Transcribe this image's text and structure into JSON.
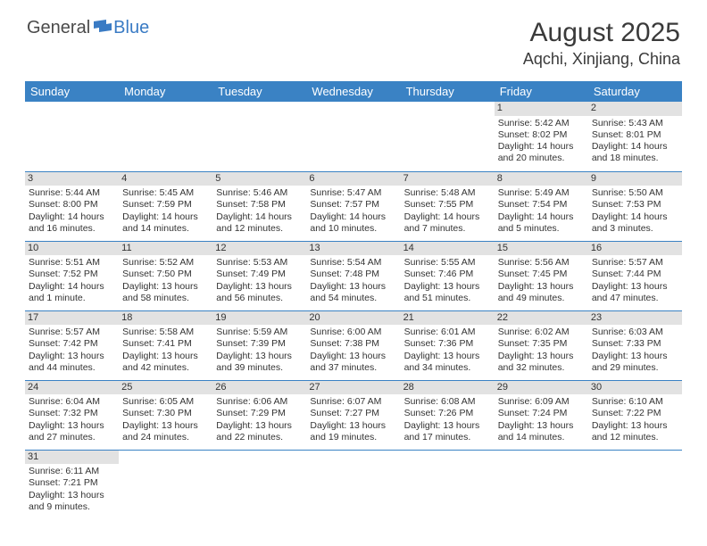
{
  "logo": {
    "general": "General",
    "blue": "Blue"
  },
  "title": "August 2025",
  "location": "Aqchi, Xinjiang, China",
  "colors": {
    "header_bg": "#3a82c4",
    "header_text": "#ffffff",
    "daynum_bg": "#e2e2e2",
    "row_border": "#3a82c4",
    "logo_blue": "#3a7bc4",
    "text": "#3a3a3a"
  },
  "day_headers": [
    "Sunday",
    "Monday",
    "Tuesday",
    "Wednesday",
    "Thursday",
    "Friday",
    "Saturday"
  ],
  "weeks": [
    [
      null,
      null,
      null,
      null,
      null,
      {
        "n": "1",
        "sr": "Sunrise: 5:42 AM",
        "ss": "Sunset: 8:02 PM",
        "d1": "Daylight: 14 hours",
        "d2": "and 20 minutes."
      },
      {
        "n": "2",
        "sr": "Sunrise: 5:43 AM",
        "ss": "Sunset: 8:01 PM",
        "d1": "Daylight: 14 hours",
        "d2": "and 18 minutes."
      }
    ],
    [
      {
        "n": "3",
        "sr": "Sunrise: 5:44 AM",
        "ss": "Sunset: 8:00 PM",
        "d1": "Daylight: 14 hours",
        "d2": "and 16 minutes."
      },
      {
        "n": "4",
        "sr": "Sunrise: 5:45 AM",
        "ss": "Sunset: 7:59 PM",
        "d1": "Daylight: 14 hours",
        "d2": "and 14 minutes."
      },
      {
        "n": "5",
        "sr": "Sunrise: 5:46 AM",
        "ss": "Sunset: 7:58 PM",
        "d1": "Daylight: 14 hours",
        "d2": "and 12 minutes."
      },
      {
        "n": "6",
        "sr": "Sunrise: 5:47 AM",
        "ss": "Sunset: 7:57 PM",
        "d1": "Daylight: 14 hours",
        "d2": "and 10 minutes."
      },
      {
        "n": "7",
        "sr": "Sunrise: 5:48 AM",
        "ss": "Sunset: 7:55 PM",
        "d1": "Daylight: 14 hours",
        "d2": "and 7 minutes."
      },
      {
        "n": "8",
        "sr": "Sunrise: 5:49 AM",
        "ss": "Sunset: 7:54 PM",
        "d1": "Daylight: 14 hours",
        "d2": "and 5 minutes."
      },
      {
        "n": "9",
        "sr": "Sunrise: 5:50 AM",
        "ss": "Sunset: 7:53 PM",
        "d1": "Daylight: 14 hours",
        "d2": "and 3 minutes."
      }
    ],
    [
      {
        "n": "10",
        "sr": "Sunrise: 5:51 AM",
        "ss": "Sunset: 7:52 PM",
        "d1": "Daylight: 14 hours",
        "d2": "and 1 minute."
      },
      {
        "n": "11",
        "sr": "Sunrise: 5:52 AM",
        "ss": "Sunset: 7:50 PM",
        "d1": "Daylight: 13 hours",
        "d2": "and 58 minutes."
      },
      {
        "n": "12",
        "sr": "Sunrise: 5:53 AM",
        "ss": "Sunset: 7:49 PM",
        "d1": "Daylight: 13 hours",
        "d2": "and 56 minutes."
      },
      {
        "n": "13",
        "sr": "Sunrise: 5:54 AM",
        "ss": "Sunset: 7:48 PM",
        "d1": "Daylight: 13 hours",
        "d2": "and 54 minutes."
      },
      {
        "n": "14",
        "sr": "Sunrise: 5:55 AM",
        "ss": "Sunset: 7:46 PM",
        "d1": "Daylight: 13 hours",
        "d2": "and 51 minutes."
      },
      {
        "n": "15",
        "sr": "Sunrise: 5:56 AM",
        "ss": "Sunset: 7:45 PM",
        "d1": "Daylight: 13 hours",
        "d2": "and 49 minutes."
      },
      {
        "n": "16",
        "sr": "Sunrise: 5:57 AM",
        "ss": "Sunset: 7:44 PM",
        "d1": "Daylight: 13 hours",
        "d2": "and 47 minutes."
      }
    ],
    [
      {
        "n": "17",
        "sr": "Sunrise: 5:57 AM",
        "ss": "Sunset: 7:42 PM",
        "d1": "Daylight: 13 hours",
        "d2": "and 44 minutes."
      },
      {
        "n": "18",
        "sr": "Sunrise: 5:58 AM",
        "ss": "Sunset: 7:41 PM",
        "d1": "Daylight: 13 hours",
        "d2": "and 42 minutes."
      },
      {
        "n": "19",
        "sr": "Sunrise: 5:59 AM",
        "ss": "Sunset: 7:39 PM",
        "d1": "Daylight: 13 hours",
        "d2": "and 39 minutes."
      },
      {
        "n": "20",
        "sr": "Sunrise: 6:00 AM",
        "ss": "Sunset: 7:38 PM",
        "d1": "Daylight: 13 hours",
        "d2": "and 37 minutes."
      },
      {
        "n": "21",
        "sr": "Sunrise: 6:01 AM",
        "ss": "Sunset: 7:36 PM",
        "d1": "Daylight: 13 hours",
        "d2": "and 34 minutes."
      },
      {
        "n": "22",
        "sr": "Sunrise: 6:02 AM",
        "ss": "Sunset: 7:35 PM",
        "d1": "Daylight: 13 hours",
        "d2": "and 32 minutes."
      },
      {
        "n": "23",
        "sr": "Sunrise: 6:03 AM",
        "ss": "Sunset: 7:33 PM",
        "d1": "Daylight: 13 hours",
        "d2": "and 29 minutes."
      }
    ],
    [
      {
        "n": "24",
        "sr": "Sunrise: 6:04 AM",
        "ss": "Sunset: 7:32 PM",
        "d1": "Daylight: 13 hours",
        "d2": "and 27 minutes."
      },
      {
        "n": "25",
        "sr": "Sunrise: 6:05 AM",
        "ss": "Sunset: 7:30 PM",
        "d1": "Daylight: 13 hours",
        "d2": "and 24 minutes."
      },
      {
        "n": "26",
        "sr": "Sunrise: 6:06 AM",
        "ss": "Sunset: 7:29 PM",
        "d1": "Daylight: 13 hours",
        "d2": "and 22 minutes."
      },
      {
        "n": "27",
        "sr": "Sunrise: 6:07 AM",
        "ss": "Sunset: 7:27 PM",
        "d1": "Daylight: 13 hours",
        "d2": "and 19 minutes."
      },
      {
        "n": "28",
        "sr": "Sunrise: 6:08 AM",
        "ss": "Sunset: 7:26 PM",
        "d1": "Daylight: 13 hours",
        "d2": "and 17 minutes."
      },
      {
        "n": "29",
        "sr": "Sunrise: 6:09 AM",
        "ss": "Sunset: 7:24 PM",
        "d1": "Daylight: 13 hours",
        "d2": "and 14 minutes."
      },
      {
        "n": "30",
        "sr": "Sunrise: 6:10 AM",
        "ss": "Sunset: 7:22 PM",
        "d1": "Daylight: 13 hours",
        "d2": "and 12 minutes."
      }
    ],
    [
      {
        "n": "31",
        "sr": "Sunrise: 6:11 AM",
        "ss": "Sunset: 7:21 PM",
        "d1": "Daylight: 13 hours",
        "d2": "and 9 minutes."
      },
      null,
      null,
      null,
      null,
      null,
      null
    ]
  ]
}
